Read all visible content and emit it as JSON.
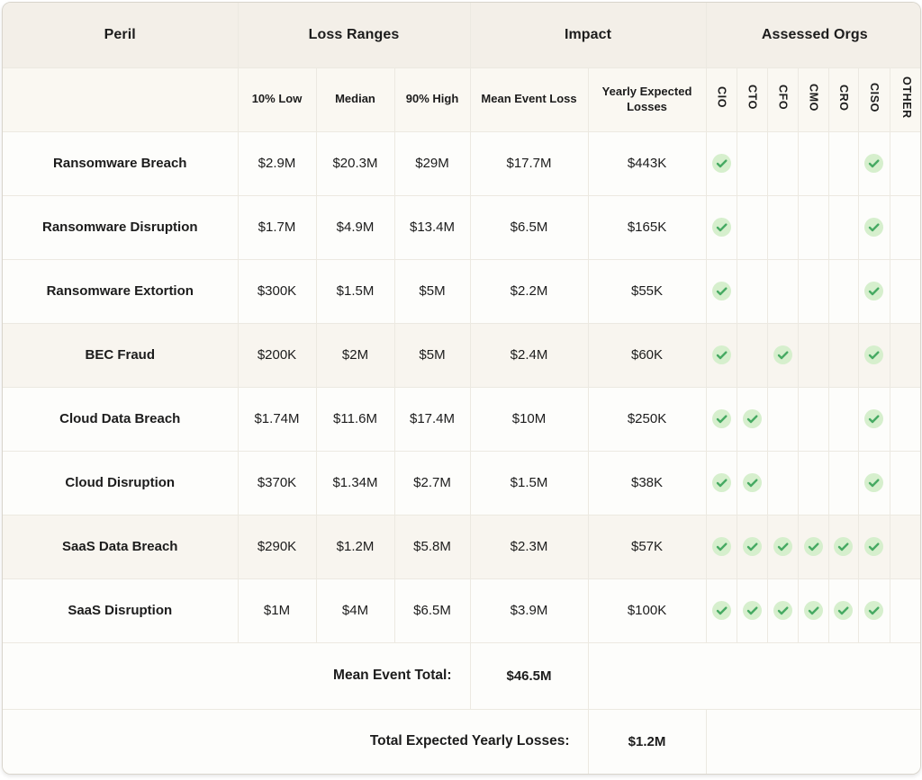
{
  "colors": {
    "group_header_bg": "#f3efe8",
    "subheader_bg": "#faf8f2",
    "row_bg": "#fdfdfb",
    "row_highlight_bg": "#f8f5ef",
    "line": "#ece9e1",
    "outer_border": "#d9d5cc",
    "text": "#1c1c1c",
    "check_circle": "#d6efcd",
    "check_mark": "#47aa63"
  },
  "chart_data": {
    "type": "table",
    "column_groups": [
      {
        "label": "Peril",
        "span": 1
      },
      {
        "label": "Loss Ranges",
        "span": 3
      },
      {
        "label": "Impact",
        "span": 2
      },
      {
        "label": "Assessed Orgs",
        "span": 7
      }
    ],
    "columns": [
      "Peril",
      "10% Low",
      "Median",
      "90% High",
      "Mean Event Loss",
      "Yearly Expected Losses",
      "CIO",
      "CTO",
      "CFO",
      "CMO",
      "CRO",
      "CISO",
      "OTHER"
    ],
    "rows": [
      {
        "peril": "Ransomware Breach",
        "low": "$2.9M",
        "median": "$20.3M",
        "high": "$29M",
        "mean": "$17.7M",
        "yearly": "$443K",
        "checks": [
          1,
          0,
          0,
          0,
          0,
          1,
          0
        ],
        "highlight": false
      },
      {
        "peril": "Ransomware Disruption",
        "low": "$1.7M",
        "median": "$4.9M",
        "high": "$13.4M",
        "mean": "$6.5M",
        "yearly": "$165K",
        "checks": [
          1,
          0,
          0,
          0,
          0,
          1,
          0
        ],
        "highlight": false
      },
      {
        "peril": "Ransomware Extortion",
        "low": "$300K",
        "median": "$1.5M",
        "high": "$5M",
        "mean": "$2.2M",
        "yearly": "$55K",
        "checks": [
          1,
          0,
          0,
          0,
          0,
          1,
          0
        ],
        "highlight": false
      },
      {
        "peril": "BEC Fraud",
        "low": "$200K",
        "median": "$2M",
        "high": "$5M",
        "mean": "$2.4M",
        "yearly": "$60K",
        "checks": [
          1,
          0,
          1,
          0,
          0,
          1,
          0
        ],
        "highlight": true
      },
      {
        "peril": "Cloud Data Breach",
        "low": "$1.74M",
        "median": "$11.6M",
        "high": "$17.4M",
        "mean": "$10M",
        "yearly": "$250K",
        "checks": [
          1,
          1,
          0,
          0,
          0,
          1,
          0
        ],
        "highlight": false
      },
      {
        "peril": "Cloud Disruption",
        "low": "$370K",
        "median": "$1.34M",
        "high": "$2.7M",
        "mean": "$1.5M",
        "yearly": "$38K",
        "checks": [
          1,
          1,
          0,
          0,
          0,
          1,
          0
        ],
        "highlight": false
      },
      {
        "peril": "SaaS Data Breach",
        "low": "$290K",
        "median": "$1.2M",
        "high": "$5.8M",
        "mean": "$2.3M",
        "yearly": "$57K",
        "checks": [
          1,
          1,
          1,
          1,
          1,
          1,
          0
        ],
        "highlight": true
      },
      {
        "peril": "SaaS Disruption",
        "low": "$1M",
        "median": "$4M",
        "high": "$6.5M",
        "mean": "$3.9M",
        "yearly": "$100K",
        "checks": [
          1,
          1,
          1,
          1,
          1,
          1,
          0
        ],
        "highlight": false
      }
    ],
    "footer": {
      "mean_total_label": "Mean Event Total:",
      "mean_total_value": "$46.5M",
      "yearly_total_label": "Total Expected Yearly Losses:",
      "yearly_total_value": "$1.2M"
    }
  }
}
